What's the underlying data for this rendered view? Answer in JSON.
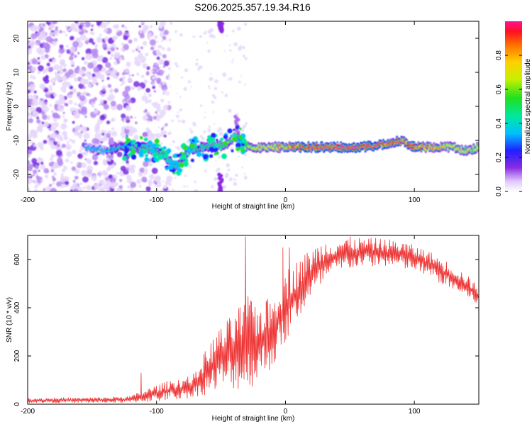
{
  "title": "S206.2025.357.19.34.R16",
  "chart_data": [
    {
      "type": "heatmap",
      "xlabel": "Height of straight line (km)",
      "ylabel": "Frequency (Hz)",
      "xlim": [
        -200,
        150
      ],
      "ylim": [
        -25,
        25
      ],
      "xticks": [
        -200,
        -100,
        0,
        100
      ],
      "xtick_labels": [
        "-200",
        "-100",
        "0",
        "100"
      ],
      "yticks": [
        -20,
        -10,
        0,
        10,
        20
      ],
      "ytick_labels": [
        "-20",
        "-10",
        "0",
        "10",
        "20"
      ],
      "colorbar": {
        "label": "Normalized spectral amplitude",
        "range": [
          0,
          1
        ],
        "ticks": [
          0,
          0.2,
          0.4,
          0.6,
          0.8
        ],
        "tick_labels": [
          "0.0",
          "0.2",
          "0.4",
          "0.6",
          "0.8"
        ],
        "colormap": "rainbow"
      },
      "ridge": {
        "description_points_x": [
          -155,
          -140,
          -125,
          -110,
          -95,
          -85,
          -75,
          -65,
          -55,
          -45,
          -38,
          -30,
          -20,
          -10,
          0,
          10,
          20,
          40,
          60,
          80,
          90,
          100,
          110,
          120,
          130,
          140,
          150
        ],
        "description_points_freq": [
          -12,
          -13,
          -12,
          -12,
          -14,
          -18,
          -13,
          -12,
          -12,
          -11,
          -9,
          -12,
          -12,
          -12,
          -12,
          -12,
          -12,
          -12,
          -12,
          -11,
          -10,
          -12,
          -12,
          -12,
          -12,
          -13,
          -12
        ],
        "peak_amplitude": [
          0.3,
          0.35,
          0.4,
          0.45,
          0.4,
          0.45,
          0.4,
          0.45,
          0.5,
          0.55,
          0.5,
          0.6,
          0.65,
          0.7,
          0.75,
          0.9,
          0.95,
          0.95,
          0.95,
          0.9,
          0.85,
          0.85,
          0.8,
          0.75,
          0.7,
          0.65,
          0.6
        ]
      },
      "background_noise_extent_x": [
        -200,
        -110
      ]
    },
    {
      "type": "line",
      "xlabel": "Height of straight line (km)",
      "ylabel": "SNR (10 * v/v)",
      "xlim": [
        -200,
        150
      ],
      "ylim": [
        0,
        700
      ],
      "xticks": [
        -200,
        -100,
        0,
        100
      ],
      "xtick_labels": [
        "-200",
        "-100",
        "0",
        "100"
      ],
      "yticks": [
        0,
        200,
        400,
        600
      ],
      "ytick_labels": [
        "0",
        "200",
        "400",
        "600"
      ],
      "color": "#ee3333",
      "envelope": {
        "x": [
          -200,
          -180,
          -160,
          -140,
          -120,
          -110,
          -100,
          -90,
          -80,
          -70,
          -60,
          -50,
          -40,
          -30,
          -20,
          -10,
          0,
          10,
          20,
          30,
          40,
          50,
          60,
          70,
          80,
          90,
          100,
          110,
          120,
          130,
          140,
          150
        ],
        "low": [
          5,
          5,
          5,
          5,
          5,
          8,
          10,
          15,
          20,
          30,
          40,
          60,
          60,
          50,
          100,
          150,
          250,
          350,
          430,
          500,
          540,
          560,
          570,
          570,
          570,
          560,
          550,
          530,
          500,
          470,
          440,
          410
        ],
        "high": [
          25,
          28,
          28,
          30,
          35,
          60,
          80,
          100,
          110,
          130,
          250,
          320,
          380,
          450,
          420,
          450,
          560,
          600,
          650,
          680,
          690,
          695,
          690,
          690,
          685,
          680,
          660,
          640,
          610,
          580,
          540,
          490
        ]
      },
      "spikes": [
        {
          "x": -112,
          "y": 130
        },
        {
          "x": -50,
          "y": 312
        },
        {
          "x": -31,
          "y": 695
        },
        {
          "x": -27,
          "y": 430
        },
        {
          "x": -15,
          "y": 420
        },
        {
          "x": -2,
          "y": 650
        },
        {
          "x": 3,
          "y": 650
        }
      ]
    }
  ]
}
